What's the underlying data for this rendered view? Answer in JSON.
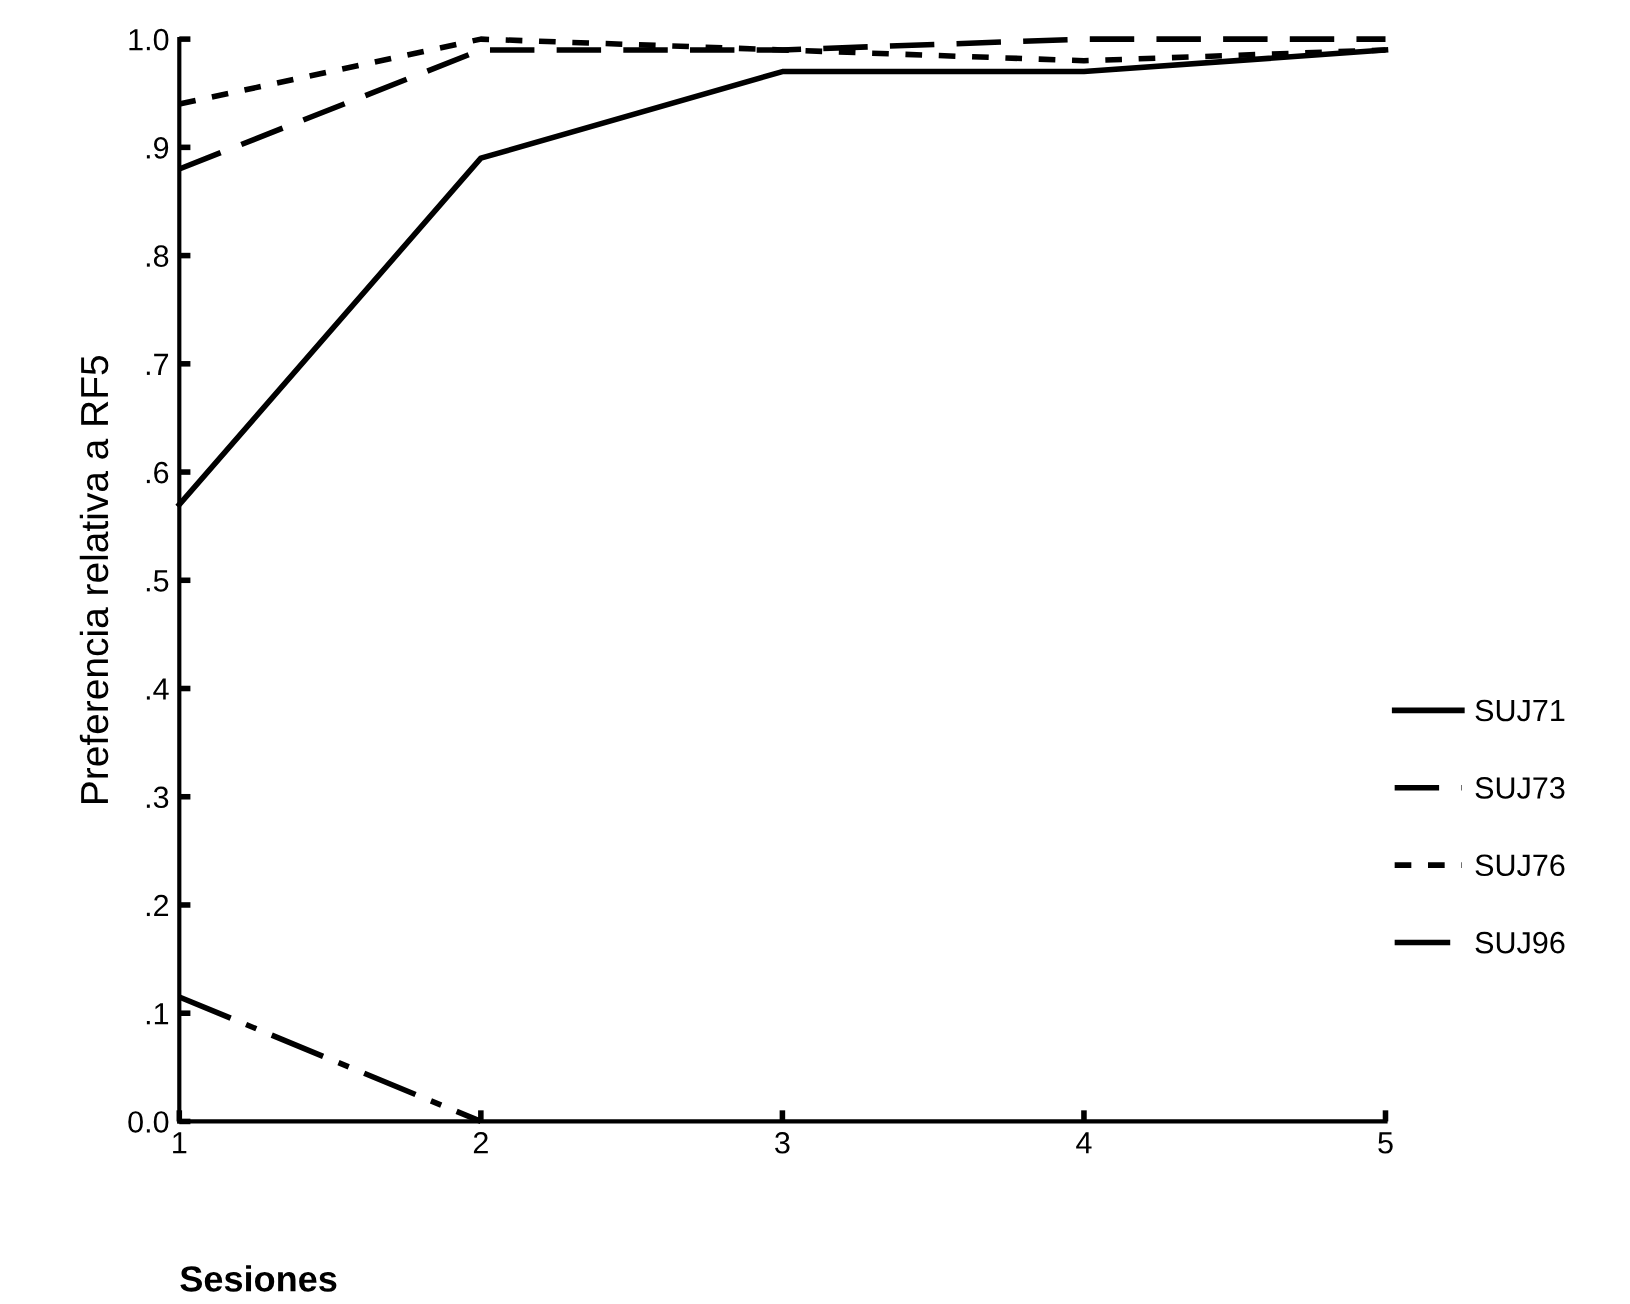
{
  "chart_data": {
    "type": "line",
    "ylabel": "Preferencia relativa a RF5",
    "xlabel": "Sesiones",
    "x": [
      1,
      2,
      3,
      4,
      5
    ],
    "xlim": [
      1,
      5
    ],
    "xticks": [
      1,
      2,
      3,
      4,
      5
    ],
    "ylim": [
      0,
      1
    ],
    "yticks": [
      {
        "value": 0,
        "label": "0.0"
      },
      {
        "value": 0.1,
        "label": ".1"
      },
      {
        "value": 0.2,
        "label": ".2"
      },
      {
        "value": 0.3,
        "label": ".3"
      },
      {
        "value": 0.4,
        "label": ".4"
      },
      {
        "value": 0.5,
        "label": ".5"
      },
      {
        "value": 0.6,
        "label": ".6"
      },
      {
        "value": 0.7,
        "label": ".7"
      },
      {
        "value": 0.8,
        "label": ".8"
      },
      {
        "value": 0.9,
        "label": ".9"
      },
      {
        "value": 1.0,
        "label": "1.0"
      }
    ],
    "series": [
      {
        "name": "SUJ71",
        "color": "#000000",
        "line_style": "solid",
        "values": [
          0.57,
          0.89,
          0.97,
          0.97,
          0.99
        ]
      },
      {
        "name": "SUJ73",
        "color": "#000000",
        "line_style": "dashed",
        "values": [
          0.88,
          0.99,
          0.99,
          1.0,
          1.0
        ]
      },
      {
        "name": "SUJ76",
        "color": "#000000",
        "line_style": "dotted",
        "values": [
          0.94,
          1.0,
          0.99,
          0.98,
          0.99
        ]
      },
      {
        "name": "SUJ96",
        "color": "#000000",
        "line_style": "dashdot",
        "values": [
          0.115,
          0.0,
          null,
          null,
          null
        ]
      }
    ],
    "grid": false,
    "legend": "right",
    "marker": "none"
  }
}
